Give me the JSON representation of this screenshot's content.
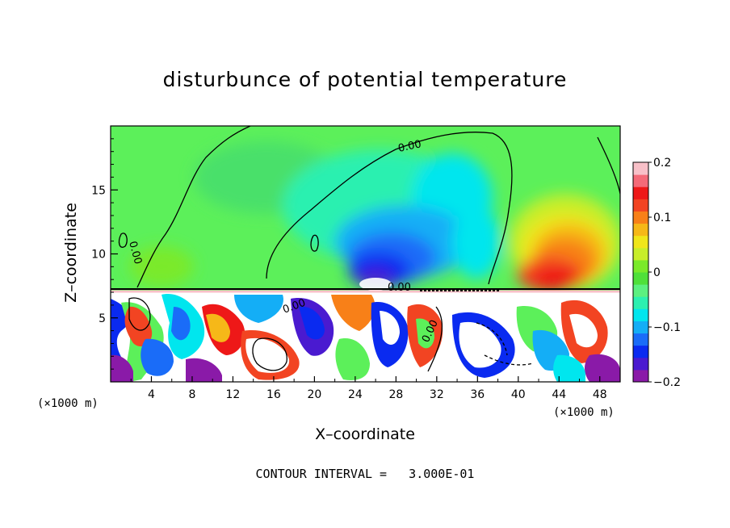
{
  "chart_data": {
    "type": "heatmap",
    "title": "disturbunce of potential temperature",
    "xlabel": "X–coordinate",
    "ylabel": "Z–coordinate",
    "x_unit_left": "(×1000 m)",
    "x_unit_right": "(×1000 m)",
    "xlim": [
      0,
      50
    ],
    "ylim": [
      0,
      20
    ],
    "x_ticks": [
      4,
      8,
      12,
      16,
      20,
      24,
      28,
      32,
      36,
      40,
      44,
      48
    ],
    "x_tick_labels": [
      "4",
      "8",
      "12",
      "16",
      "20",
      "24",
      "28",
      "32",
      "36",
      "40",
      "44",
      "48"
    ],
    "y_ticks": [
      5,
      10,
      15
    ],
    "y_tick_labels": [
      "5",
      "10",
      "15"
    ],
    "colorbar": {
      "range": [
        -0.2,
        0.2
      ],
      "ticks": [
        0.2,
        0.1,
        0,
        -0.1,
        -0.2
      ],
      "tick_labels": [
        "0.2",
        "0.1",
        "0",
        "−0.1",
        "−0.2"
      ],
      "colors": [
        "#8a1aa8",
        "#4a1ad0",
        "#0a2af0",
        "#1a6cf8",
        "#14aef6",
        "#00e6ee",
        "#2cf0b0",
        "#5cf080",
        "#4fe03a",
        "#7aea2a",
        "#c8ee2a",
        "#f0e61a",
        "#f6b818",
        "#f88018",
        "#f24422",
        "#ee1818",
        "#f46a78",
        "#f8c0c8"
      ]
    },
    "contour_labels": [
      "0.00",
      "0.00",
      "0.00",
      "0.00",
      "0.00"
    ],
    "contour_interval_text": "CONTOUR INTERVAL =   3.000E-01"
  }
}
